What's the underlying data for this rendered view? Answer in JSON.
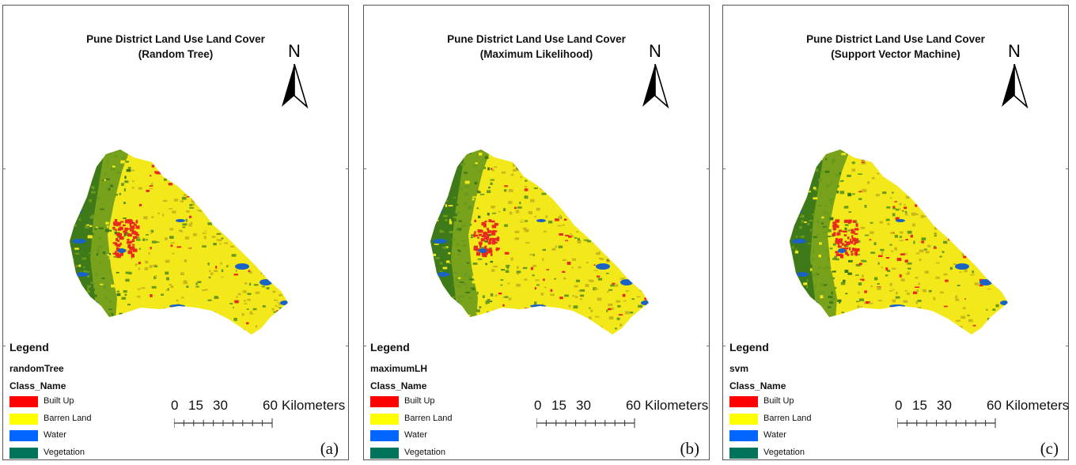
{
  "panels": [
    {
      "title_line1": "Pune District Land Use Land Cover",
      "title_line2": "(Random Tree)",
      "north_label": "N",
      "legend_title": "Legend",
      "layer_name": "randomTree",
      "class_header": "Class_Name",
      "classes": [
        {
          "label": "Built Up",
          "color": "#ff0000"
        },
        {
          "label": "Barren Land",
          "color": "#ffff00"
        },
        {
          "label": "Water",
          "color": "#0066ff"
        },
        {
          "label": "Vegetation",
          "color": "#00735a"
        }
      ],
      "scale": {
        "t0": "0",
        "t1": "15",
        "t2": "30",
        "t3": "60",
        "unit": "Kilometers"
      },
      "panel_label": "(a)"
    },
    {
      "title_line1": "Pune District Land Use Land Cover",
      "title_line2": "(Maximum Likelihood)",
      "north_label": "N",
      "legend_title": "Legend",
      "layer_name": "maximumLH",
      "class_header": "Class_Name",
      "classes": [
        {
          "label": "Built Up",
          "color": "#ff0000"
        },
        {
          "label": "Barren Land",
          "color": "#ffff00"
        },
        {
          "label": "Water",
          "color": "#0066ff"
        },
        {
          "label": "Vegetation",
          "color": "#00735a"
        }
      ],
      "scale": {
        "t0": "0",
        "t1": "15",
        "t2": "30",
        "t3": "60",
        "unit": "Kilometers"
      },
      "panel_label": "(b)"
    },
    {
      "title_line1": "Pune District Land Use Land Cover",
      "title_line2": "(Support Vector Machine)",
      "north_label": "N",
      "legend_title": "Legend",
      "layer_name": "svm",
      "class_header": "Class_Name",
      "classes": [
        {
          "label": "Built Up",
          "color": "#ff0000"
        },
        {
          "label": "Barren Land",
          "color": "#ffff00"
        },
        {
          "label": "Water",
          "color": "#0066ff"
        },
        {
          "label": "Vegetation",
          "color": "#00735a"
        }
      ],
      "scale": {
        "t0": "0",
        "t1": "15",
        "t2": "30",
        "t3": "60",
        "unit": "Kilometers"
      },
      "panel_label": "(c)"
    }
  ],
  "map_colors": {
    "vegetation_dark": "#3f7a1a",
    "vegetation": "#6a9a1c",
    "barren": "#f2e81a",
    "mixed": "#c9b81c",
    "built": "#e82a1e",
    "water": "#1a63c4"
  }
}
